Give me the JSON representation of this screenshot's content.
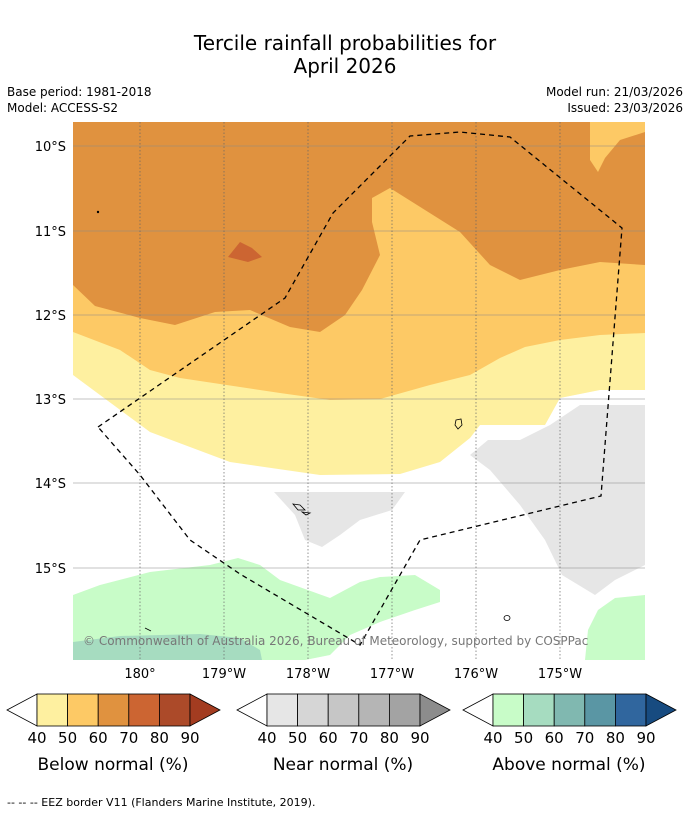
{
  "title": {
    "line1": "Tercile rainfall probabilities for",
    "line2": "April 2026"
  },
  "meta": {
    "base_period": "Base period: 1981-2018",
    "model": "Model: ACCESS-S2",
    "model_run": "Model run: 21/03/2026",
    "issued": "Issued: 23/03/2026"
  },
  "axes": {
    "lat_labels": [
      "10°S",
      "11°S",
      "12°S",
      "13°S",
      "14°S",
      "15°S"
    ],
    "lon_labels": [
      "180°",
      "179°W",
      "178°W",
      "177°W",
      "176°W",
      "175°W"
    ]
  },
  "copyright": "© Commonwealth of Australia 2026, Bureau of Meteorology, supported by COSPPac",
  "colorbars": [
    {
      "label": "Below normal (%)",
      "ticks": [
        "40",
        "50",
        "60",
        "70",
        "80",
        "90"
      ],
      "colors": [
        "#fef0a0",
        "#fdc965",
        "#e0923f",
        "#cc6532",
        "#ac4a29",
        "#a33c20"
      ]
    },
    {
      "label": "Near normal (%)",
      "ticks": [
        "40",
        "50",
        "60",
        "70",
        "80",
        "90"
      ],
      "colors": [
        "#e6e6e6",
        "#d6d6d6",
        "#c6c6c6",
        "#b5b5b5",
        "#a3a3a3",
        "#8c8c8c"
      ]
    },
    {
      "label": "Above normal (%)",
      "ticks": [
        "40",
        "50",
        "60",
        "70",
        "80",
        "90"
      ],
      "colors": [
        "#c8fcc8",
        "#a6dcc0",
        "#80b8b0",
        "#5a96a4",
        "#30669e",
        "#174b80"
      ]
    }
  ],
  "footer": "-- -- -- EEZ border V11 (Flanders Marine Institute, 2019).",
  "colors": {
    "grid": "#888888",
    "eez": "#000000"
  }
}
